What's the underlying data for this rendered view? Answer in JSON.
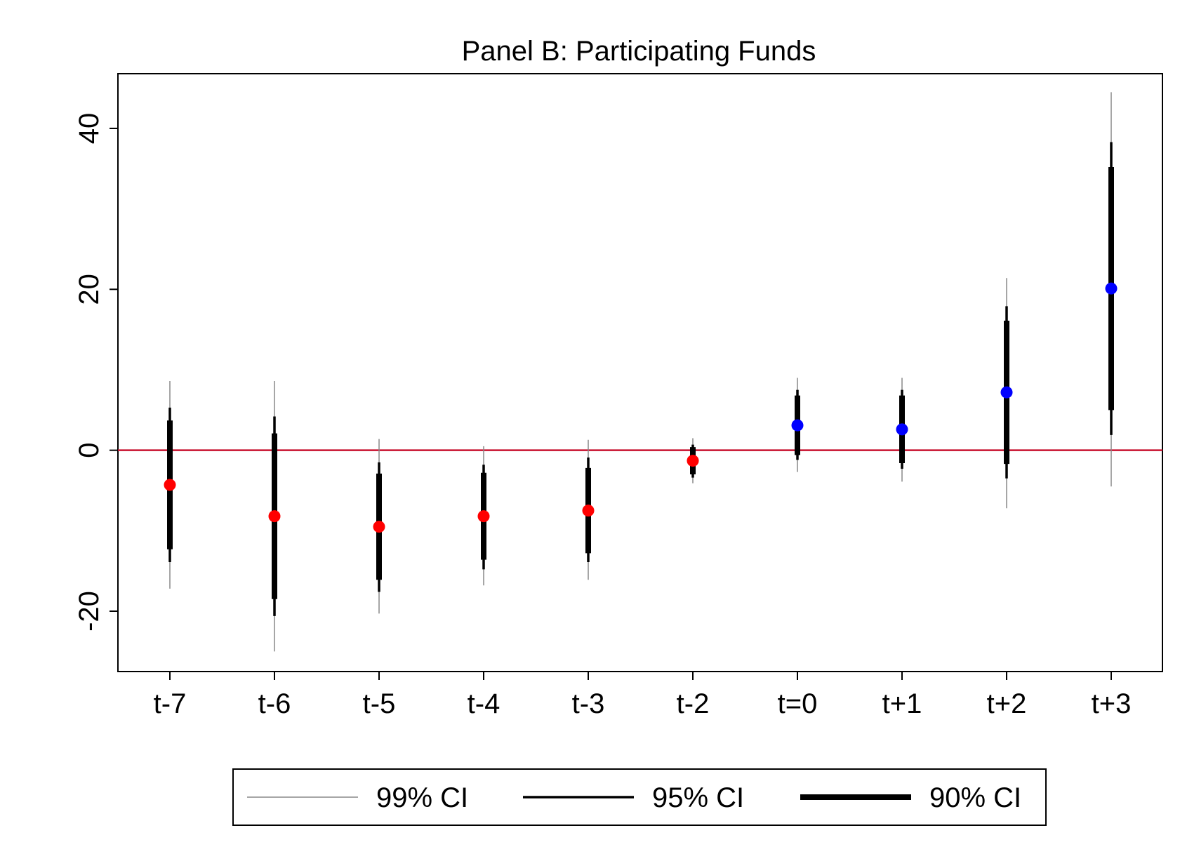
{
  "chart_data": {
    "type": "scatter",
    "title": "Panel B: Participating Funds",
    "xlabel": "",
    "ylabel": "",
    "categories": [
      "t-7",
      "t-6",
      "t-5",
      "t-4",
      "t-3",
      "t-2",
      "t=0",
      "t+1",
      "t+2",
      "t+3"
    ],
    "ylim": [
      -27.5,
      46.8
    ],
    "yticks": [
      40,
      20,
      0,
      -20
    ],
    "ytick_labels": [
      "40",
      "20",
      "0",
      "-20"
    ],
    "grid": false,
    "reference_line": {
      "y": 0,
      "color": "#c8102e"
    },
    "series": [
      {
        "estimates": [
          -4.3,
          -8.2,
          -9.5,
          -8.2,
          -7.5,
          -1.3,
          3.1,
          2.6,
          7.2,
          20.1
        ],
        "point_colors": [
          "#ff0000",
          "#ff0000",
          "#ff0000",
          "#ff0000",
          "#ff0000",
          "#ff0000",
          "#0000ff",
          "#0000ff",
          "#0000ff",
          "#0000ff"
        ],
        "ci90": [
          [
            -12.3,
            3.7
          ],
          [
            -18.5,
            2.1
          ],
          [
            -16.1,
            -2.9
          ],
          [
            -13.6,
            -2.8
          ],
          [
            -12.8,
            -2.2
          ],
          [
            -3.0,
            0.4
          ],
          [
            -0.6,
            6.8
          ],
          [
            -1.6,
            6.8
          ],
          [
            -1.7,
            16.1
          ],
          [
            5.0,
            35.2
          ]
        ],
        "ci95": [
          [
            -13.9,
            5.3
          ],
          [
            -20.6,
            4.2
          ],
          [
            -17.6,
            -1.5
          ],
          [
            -14.8,
            -1.8
          ],
          [
            -13.9,
            -0.9
          ],
          [
            -3.4,
            0.7
          ],
          [
            -1.2,
            7.5
          ],
          [
            -2.3,
            7.5
          ],
          [
            -3.5,
            17.9
          ],
          [
            1.9,
            38.3
          ]
        ],
        "ci99": [
          [
            -17.2,
            8.6
          ],
          [
            -25.0,
            8.6
          ],
          [
            -20.3,
            1.4
          ],
          [
            -16.8,
            0.5
          ],
          [
            -16.1,
            1.3
          ],
          [
            -4.1,
            1.5
          ],
          [
            -2.7,
            9.0
          ],
          [
            -3.9,
            9.0
          ],
          [
            -7.2,
            21.4
          ],
          [
            -4.5,
            44.5
          ]
        ]
      }
    ],
    "legend": {
      "placement": "bottom-center",
      "entries": [
        {
          "label": "99% CI",
          "style": "thin-gray"
        },
        {
          "label": "95% CI",
          "style": "medium-black"
        },
        {
          "label": "90% CI",
          "style": "thick-black"
        }
      ]
    },
    "colors": {
      "pre_period": "#ff0000",
      "post_period": "#0000ff",
      "ci99": "#888888",
      "ci95": "#000000",
      "ci90": "#000000",
      "zero_line": "#c8102e"
    }
  }
}
